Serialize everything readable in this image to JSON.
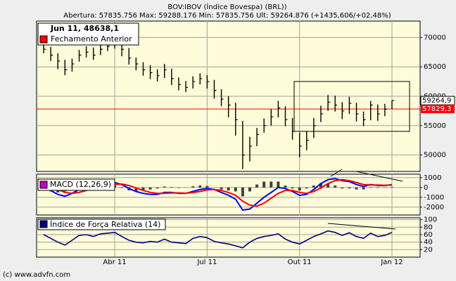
{
  "chart_data": [
    {
      "type": "ohlc",
      "title": "BOV:IBOV (Índice Bovespa) (BRL))",
      "subtitle": "Abertura: 57835.756 Max: 59288.176 Min: 57835.756 Ult: 59264.876 (+1435,606/+02,48%)",
      "legend_title": "Jun 11, 48638,1",
      "categories": [
        null,
        null,
        null,
        null,
        null,
        null,
        null,
        null,
        null,
        null,
        "Abr 11",
        null,
        null,
        null,
        null,
        null,
        null,
        null,
        null,
        null,
        null,
        null,
        null,
        "Jul 11",
        null,
        null,
        null,
        null,
        null,
        null,
        null,
        null,
        null,
        null,
        null,
        null,
        "Out 11",
        null,
        null,
        null,
        null,
        null,
        null,
        null,
        null,
        null,
        null,
        null,
        null,
        "Jan 12"
      ],
      "values": [
        68000,
        67000,
        66000,
        64500,
        65500,
        67000,
        67500,
        67000,
        68000,
        68500,
        69000,
        68000,
        66500,
        65500,
        64500,
        64000,
        63500,
        64500,
        63000,
        62000,
        61500,
        62500,
        63000,
        62500,
        61000,
        59500,
        58500,
        56000,
        50000,
        51500,
        53500,
        55000,
        56500,
        58000,
        56000,
        54000,
        51500,
        52500,
        55000,
        57000,
        59000,
        58500,
        57500,
        58800,
        57000,
        56000,
        58500,
        57000,
        57800,
        59264.9
      ],
      "value_labels": [
        null,
        null,
        null,
        null,
        null,
        null,
        null,
        null,
        null,
        null,
        null,
        null,
        null,
        null,
        null,
        null,
        null,
        null,
        null,
        null,
        null,
        null,
        null,
        null,
        null,
        null,
        null,
        null,
        null,
        null,
        null,
        null,
        null,
        null,
        null,
        null,
        null,
        null,
        null,
        null,
        null,
        null,
        null,
        null,
        null,
        null,
        null,
        null,
        null,
        "59264,9"
      ],
      "high": [
        69200,
        68400,
        67300,
        66200,
        66400,
        67900,
        68500,
        68300,
        68900,
        69400,
        70200,
        69300,
        68200,
        66600,
        65800,
        65300,
        64600,
        65500,
        64700,
        63200,
        62600,
        63400,
        63900,
        63600,
        62800,
        61200,
        60000,
        58900,
        55800,
        53100,
        54600,
        56200,
        57800,
        59200,
        58300,
        56300,
        53800,
        54100,
        56300,
        58400,
        60200,
        60100,
        59000,
        59900,
        58900,
        57400,
        59200,
        58600,
        58700,
        59288
      ],
      "low": [
        67300,
        66000,
        64600,
        63600,
        64200,
        65900,
        66600,
        66200,
        67000,
        67700,
        68100,
        66800,
        65400,
        64400,
        63500,
        62900,
        62500,
        63100,
        61900,
        61000,
        60700,
        61300,
        62000,
        61300,
        59600,
        58300,
        56400,
        53300,
        47600,
        48900,
        51500,
        53800,
        55000,
        56400,
        54900,
        52600,
        49600,
        50800,
        52900,
        55600,
        57500,
        57400,
        56100,
        57000,
        55700,
        54900,
        55900,
        55800,
        56600,
        57836
      ],
      "color": "#000000",
      "reference": {
        "name": "Fechamento Anterior",
        "value": 57829.3,
        "label": "57829,3",
        "color": "#ff0000"
      },
      "ylim": [
        47200,
        72800
      ],
      "yticks": [
        50000,
        55000,
        60000,
        65000,
        70000
      ],
      "grid": true
    },
    {
      "type": "macd",
      "legend": "MACD (12,26,9)",
      "legend_color": "#c000c0",
      "series": [
        {
          "color": "#0000ff",
          "values": [
            200,
            -300,
            -700,
            -900,
            -600,
            -200,
            100,
            200,
            300,
            400,
            500,
            300,
            -100,
            -400,
            -600,
            -700,
            -700,
            -500,
            -500,
            -600,
            -600,
            -400,
            -200,
            -100,
            -200,
            -500,
            -800,
            -1200,
            -2300,
            -2200,
            -1600,
            -1000,
            -500,
            0,
            -100,
            -400,
            -800,
            -700,
            -200,
            400,
            800,
            900,
            700,
            600,
            300,
            100,
            300,
            200,
            200,
            300
          ]
        },
        {
          "color": "#ff0000",
          "values": [
            300,
            100,
            -200,
            -500,
            -600,
            -500,
            -300,
            -100,
            100,
            200,
            300,
            350,
            200,
            -50,
            -300,
            -500,
            -600,
            -600,
            -550,
            -550,
            -580,
            -520,
            -400,
            -250,
            -200,
            -300,
            -500,
            -800,
            -1400,
            -1800,
            -1900,
            -1600,
            -1100,
            -600,
            -300,
            -300,
            -500,
            -600,
            -400,
            -50,
            400,
            700,
            800,
            700,
            500,
            300,
            250,
            250,
            220,
            250
          ]
        }
      ],
      "histogram": {
        "color": "#404040",
        "values": [
          -100,
          -400,
          -500,
          -400,
          0,
          300,
          400,
          300,
          200,
          200,
          200,
          -50,
          -300,
          -350,
          -300,
          -200,
          -100,
          100,
          50,
          -50,
          -20,
          120,
          200,
          150,
          0,
          -200,
          -300,
          -400,
          -900,
          -400,
          300,
          600,
          600,
          600,
          200,
          -100,
          -300,
          -100,
          200,
          450,
          400,
          200,
          -100,
          -100,
          -200,
          -200,
          50,
          -50,
          -20,
          50
        ]
      },
      "ylim": [
        -2800,
        1350
      ],
      "yticks": [
        1000,
        0,
        -1000,
        -2000
      ],
      "grid": true
    },
    {
      "type": "line",
      "legend": "Índice de Força Relativa (14)",
      "color": "#000080",
      "values": [
        60,
        50,
        40,
        32,
        45,
        58,
        60,
        55,
        62,
        64,
        66,
        55,
        45,
        40,
        38,
        42,
        40,
        48,
        40,
        38,
        36,
        50,
        55,
        52,
        42,
        38,
        35,
        30,
        25,
        40,
        50,
        55,
        58,
        62,
        48,
        40,
        35,
        45,
        55,
        62,
        70,
        66,
        58,
        65,
        55,
        50,
        64,
        55,
        58,
        66
      ],
      "ylim": [
        0,
        105
      ],
      "yticks": [
        20,
        40,
        60,
        80,
        100
      ],
      "grid": true
    }
  ],
  "footer": "(c) www.advfn.com"
}
